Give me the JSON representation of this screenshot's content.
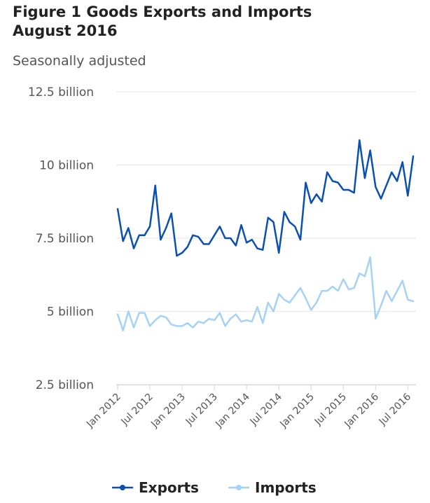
{
  "chart_data": {
    "type": "line",
    "title": "Figure 1 Goods Exports and Imports\nAugust 2016",
    "subtitle": "Seasonally adjusted",
    "ylim": [
      2.5,
      12.5
    ],
    "y_ticks": [
      {
        "value": 12.5,
        "label": "12.5 billion"
      },
      {
        "value": 10,
        "label": "10 billion"
      },
      {
        "value": 7.5,
        "label": "7.5 billion"
      },
      {
        "value": 5,
        "label": "5 billion"
      },
      {
        "value": 2.5,
        "label": "2.5 billion"
      }
    ],
    "x_ticks": [
      {
        "index": 0,
        "label": "Jan 2012"
      },
      {
        "index": 6,
        "label": "Jul 2012"
      },
      {
        "index": 12,
        "label": "Jan 2013"
      },
      {
        "index": 18,
        "label": "Jul 2013"
      },
      {
        "index": 24,
        "label": "Jan 2014"
      },
      {
        "index": 30,
        "label": "Jul 2014"
      },
      {
        "index": 36,
        "label": "Jan 2015"
      },
      {
        "index": 42,
        "label": "Jul 2015"
      },
      {
        "index": 48,
        "label": "Jan 2016"
      },
      {
        "index": 54,
        "label": "Jul 2016"
      }
    ],
    "grid": "horizontal",
    "legend": "bottom",
    "series": [
      {
        "name": "Exports",
        "color": "#0b4fb3",
        "values": [
          8.5,
          7.4,
          7.85,
          7.15,
          7.6,
          7.6,
          7.9,
          9.3,
          7.45,
          7.85,
          8.35,
          6.9,
          7.0,
          7.2,
          7.6,
          7.55,
          7.3,
          7.3,
          7.6,
          7.9,
          7.5,
          7.5,
          7.25,
          7.95,
          7.35,
          7.45,
          7.15,
          7.1,
          8.2,
          8.05,
          7.0,
          8.4,
          8.05,
          7.9,
          7.45,
          9.4,
          8.7,
          9.0,
          8.75,
          9.75,
          9.45,
          9.4,
          9.15,
          9.15,
          9.05,
          10.85,
          9.55,
          10.5,
          9.25,
          8.85,
          9.3,
          9.75,
          9.45,
          10.1,
          8.95,
          10.3
        ]
      },
      {
        "name": "Imports",
        "color": "#a6d2f5",
        "values": [
          4.9,
          4.35,
          5.0,
          4.45,
          4.95,
          4.95,
          4.5,
          4.7,
          4.85,
          4.8,
          4.55,
          4.5,
          4.5,
          4.6,
          4.45,
          4.65,
          4.6,
          4.75,
          4.7,
          4.95,
          4.5,
          4.75,
          4.9,
          4.65,
          4.7,
          4.65,
          5.15,
          4.6,
          5.3,
          5.0,
          5.6,
          5.4,
          5.3,
          5.55,
          5.8,
          5.45,
          5.05,
          5.3,
          5.7,
          5.7,
          5.85,
          5.7,
          6.1,
          5.75,
          5.8,
          6.3,
          6.2,
          6.85,
          4.75,
          5.2,
          5.7,
          5.35,
          5.7,
          6.05,
          5.4,
          5.35
        ]
      }
    ]
  }
}
